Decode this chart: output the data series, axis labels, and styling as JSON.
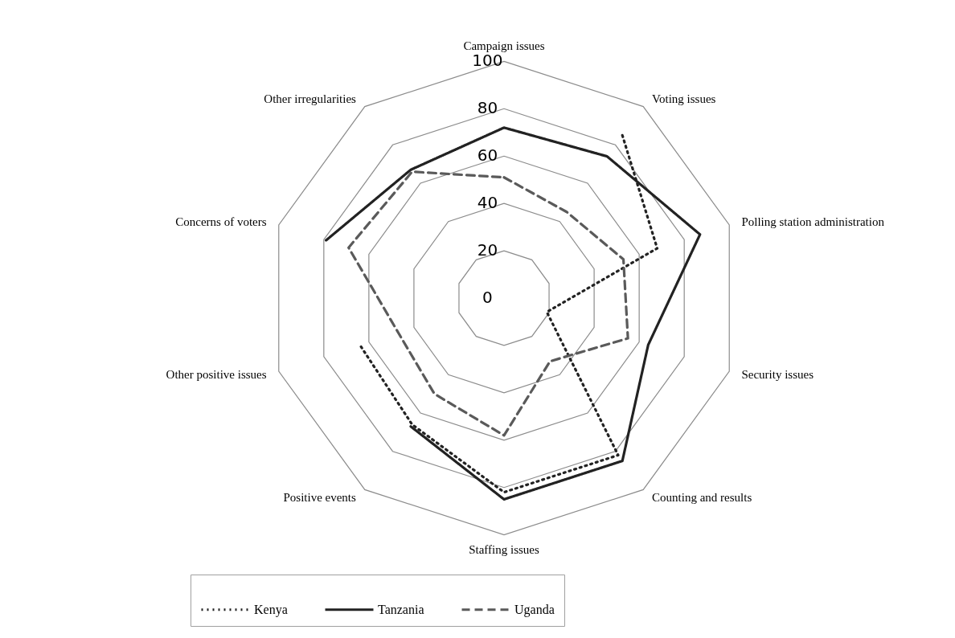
{
  "chart_data": {
    "type": "radar",
    "categories": [
      "Campaign issues",
      "Voting issues",
      "Polling station administration",
      "Security issues",
      "Counting and results",
      "Staffing issues",
      "Positive events",
      "Other positive issues",
      "Concerns of voters",
      "Other irregularities"
    ],
    "series": [
      {
        "name": "Kenya",
        "color": "#222222",
        "line_style": "dotted",
        "values": [
          null,
          85,
          68,
          19,
          82,
          82,
          66,
          64,
          null,
          null
        ]
      },
      {
        "name": "Tanzania",
        "color": "#222222",
        "line_style": "solid",
        "values": [
          72,
          74,
          87,
          64,
          85,
          85,
          67,
          null,
          79,
          67
        ]
      },
      {
        "name": "Uganda",
        "color": "#5a5a5a",
        "line_style": "dashed",
        "values": [
          51,
          45,
          53,
          55,
          33,
          58,
          50,
          47,
          69,
          66
        ]
      }
    ],
    "ylim": [
      0,
      100
    ],
    "yticks": [
      0,
      20,
      40,
      60,
      80,
      100
    ],
    "grid": true,
    "legend": "bottom"
  }
}
